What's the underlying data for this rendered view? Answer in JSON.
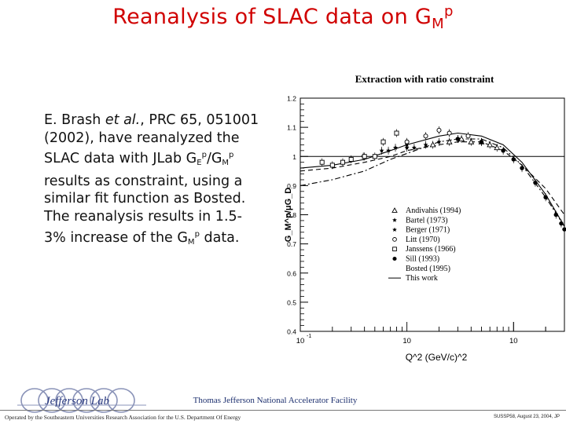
{
  "title": {
    "main": "Reanalysis of SLAC data on G",
    "sub": "M",
    "sup": "p"
  },
  "description": {
    "l1": "E. Brash ",
    "l1_italic": "et al.",
    "l1_rest": ", PRC 65, 051001",
    "l2": "(2002), have reanalyzed the",
    "l3a": "SLAC data with JLab G",
    "l3_sub1": "E",
    "l3_sup1": "p",
    "l3b": "/G",
    "l3_sub2": "M",
    "l3_sup2": "p",
    "l4": "results as constraint, using a",
    "l5": "similar fit function as Bosted.",
    "l6": "The reanalysis results in 1.5-",
    "l7a": "3% increase of the G",
    "l7_sub": "M",
    "l7_sup": "p",
    "l7b": " data."
  },
  "footer": {
    "lab_name": "Thomas Jefferson National Accelerator Facility",
    "operated_by": "Operated by the Southeastern Universities Research Association for the U.S. Department Of Energy",
    "right_note": "SUSSP58, August 23, 2004, JP",
    "logo_text": "Jefferson Lab"
  },
  "chart_data": {
    "type": "scatter",
    "title": "Extraction with ratio constraint",
    "ylabel": "G_M^p/μG_D",
    "xlabel": "Q^2 (GeV/c)^2",
    "xscale": "log",
    "xlim": [
      0.1,
      30
    ],
    "ylim": [
      0.4,
      1.2
    ],
    "yticks": [
      0.4,
      0.5,
      0.6,
      0.7,
      0.8,
      0.9,
      1,
      1.1,
      1.2
    ],
    "ytick_labels": [
      "0.4",
      "0.5",
      "0.6",
      "0.7",
      "0.8",
      "0.9",
      "1",
      "1.1",
      "1.2"
    ],
    "xtick_labels": [
      {
        "value": 0.1,
        "base": "10",
        "exp": "-1"
      },
      {
        "value": 1,
        "base": "10",
        "exp": ""
      },
      {
        "value": 10,
        "base": "10",
        "exp": ""
      }
    ],
    "reference_line": 1.0,
    "legend_position": "lower-right",
    "series": [
      {
        "name": "Andivahis (1994)",
        "marker": "triangle-open",
        "x": [
          1.75,
          2.5,
          3.25,
          4.0,
          5.0,
          6.0,
          7.0
        ],
        "y": [
          1.04,
          1.05,
          1.06,
          1.05,
          1.05,
          1.04,
          1.03
        ]
      },
      {
        "name": "Bartel (1973)",
        "marker": "star",
        "x": [
          0.67,
          1.0,
          1.17,
          1.5,
          2.0,
          3.0
        ],
        "y": [
          1.02,
          1.03,
          1.03,
          1.04,
          1.05,
          1.06
        ]
      },
      {
        "name": "Berger (1971)",
        "marker": "star",
        "x": [
          0.39,
          0.58,
          0.78,
          1.0
        ],
        "y": [
          1.0,
          1.02,
          1.03,
          1.04
        ]
      },
      {
        "name": "Litt (1970)",
        "marker": "circle-open",
        "x": [
          1.0,
          1.5,
          2.0,
          2.5,
          3.75
        ],
        "y": [
          1.05,
          1.07,
          1.09,
          1.08,
          1.07
        ]
      },
      {
        "name": "Janssens (1966)",
        "marker": "square-open",
        "x": [
          0.16,
          0.2,
          0.25,
          0.3,
          0.4,
          0.5,
          0.6,
          0.8
        ],
        "y": [
          0.98,
          0.97,
          0.98,
          0.99,
          1.0,
          1.0,
          1.05,
          1.08
        ]
      },
      {
        "name": "Sill (1993)",
        "marker": "circle-filled",
        "x": [
          3.0,
          5.0,
          8.0,
          10.0,
          12.0,
          16.0,
          20.0,
          25.0,
          28.0,
          30.0
        ],
        "y": [
          1.06,
          1.05,
          1.02,
          0.99,
          0.96,
          0.91,
          0.86,
          0.8,
          0.77,
          0.75
        ]
      }
    ],
    "curves": [
      {
        "name": "Bosted (1995)",
        "style": "dashed",
        "x": [
          0.1,
          0.2,
          0.4,
          0.7,
          1.0,
          2.0,
          3.0,
          5.0,
          8.0,
          12.0,
          20.0,
          30.0
        ],
        "y": [
          0.95,
          0.96,
          0.98,
          1.0,
          1.02,
          1.04,
          1.05,
          1.05,
          1.02,
          0.97,
          0.89,
          0.8
        ]
      },
      {
        "name": "This work",
        "style": "solid",
        "x": [
          0.1,
          0.2,
          0.4,
          0.7,
          1.0,
          2.0,
          3.0,
          5.0,
          8.0,
          12.0,
          20.0,
          30.0
        ],
        "y": [
          0.96,
          0.97,
          0.99,
          1.02,
          1.04,
          1.07,
          1.08,
          1.07,
          1.04,
          0.98,
          0.87,
          0.76
        ]
      },
      {
        "name": "",
        "style": "dashdot",
        "x": [
          0.1,
          0.2,
          0.4,
          0.7,
          1.0,
          2.0,
          3.0,
          5.0,
          8.0,
          12.0,
          20.0,
          30.0
        ],
        "y": [
          0.9,
          0.92,
          0.95,
          0.99,
          1.01,
          1.05,
          1.06,
          1.06,
          1.03,
          0.97,
          0.86,
          0.76
        ]
      }
    ]
  }
}
